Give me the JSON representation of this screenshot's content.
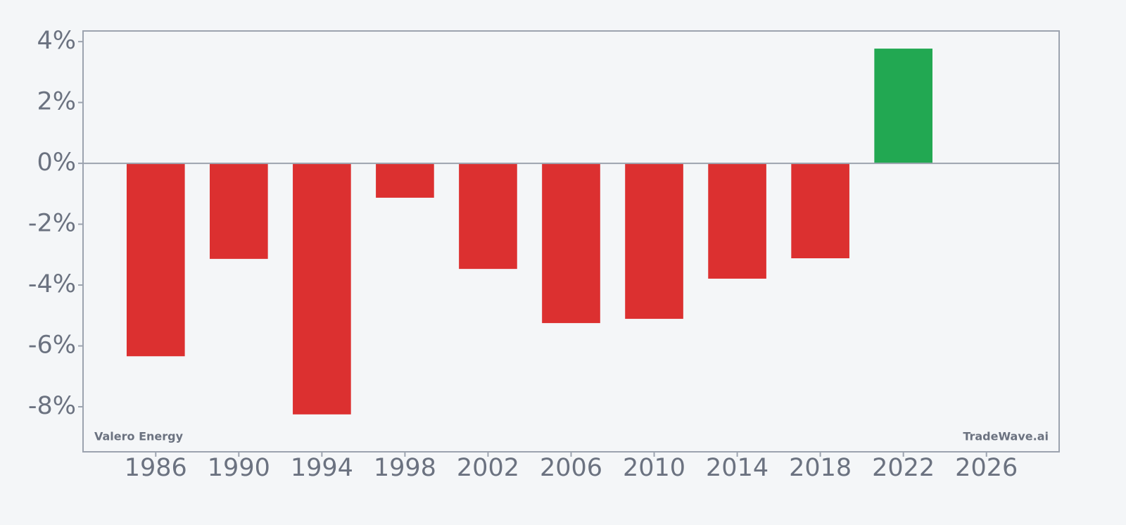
{
  "chart_data": {
    "type": "bar",
    "x": [
      1986,
      1990,
      1994,
      1998,
      2002,
      2006,
      2010,
      2014,
      2018,
      2022
    ],
    "values": [
      -6.34,
      -3.14,
      -8.25,
      -1.13,
      -3.47,
      -5.25,
      -5.11,
      -3.79,
      -3.12,
      3.77
    ],
    "positive_color": "#22a852",
    "negative_color": "#dc3030",
    "xlim": [
      1982.5,
      2029.5
    ],
    "xticks": [
      1986,
      1990,
      1994,
      1998,
      2002,
      2006,
      2010,
      2014,
      2018,
      2022,
      2026
    ],
    "ylim": [
      -9.48,
      4.35
    ],
    "yticks": [
      {
        "value": 4,
        "label": "4%"
      },
      {
        "value": 2,
        "label": "2%"
      },
      {
        "value": 0,
        "label": "0%"
      },
      {
        "value": -2,
        "label": "-2%"
      },
      {
        "value": -4,
        "label": "-4%"
      },
      {
        "value": -6,
        "label": "-6%"
      },
      {
        "value": -8,
        "label": "-8%"
      }
    ],
    "annotations": [
      "Valero Energy",
      "TradeWave.ai"
    ],
    "grid": false
  }
}
